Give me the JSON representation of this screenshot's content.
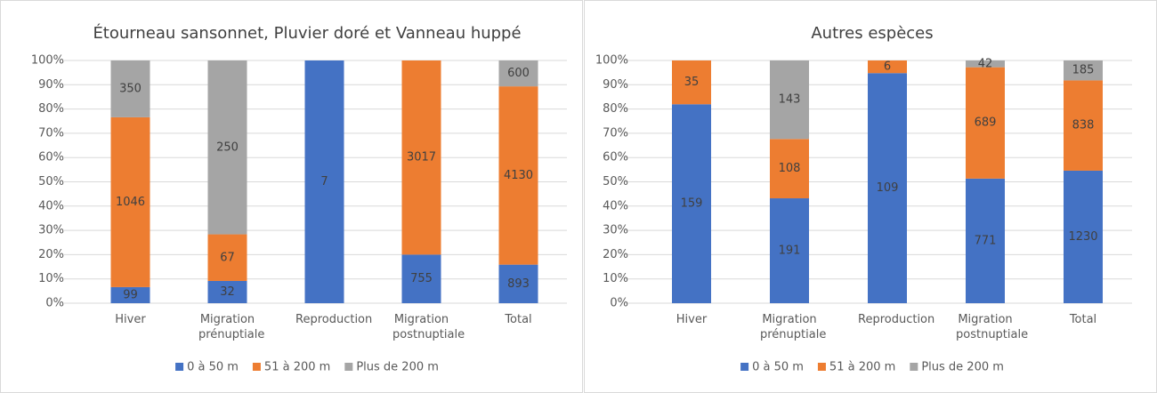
{
  "chart_data": [
    {
      "type": "bar",
      "stacking": "percent",
      "title": "Étourneau sansonnet, Pluvier doré et Vanneau huppé",
      "categories": [
        "Hiver",
        "Migration prénuptiale",
        "Reproduction",
        "Migration postnuptiale",
        "Total"
      ],
      "series": [
        {
          "name": "0 à 50 m",
          "color": "#4472c4",
          "values": [
            99,
            32,
            7,
            755,
            893
          ]
        },
        {
          "name": "51 à 200 m",
          "color": "#ed7d31",
          "values": [
            1046,
            67,
            null,
            3017,
            4130
          ]
        },
        {
          "name": "Plus de 200 m",
          "color": "#a5a5a5",
          "values": [
            350,
            250,
            null,
            null,
            600
          ]
        }
      ],
      "ylim": [
        0,
        100
      ],
      "yticks": [
        {
          "value": 0,
          "label": "0%"
        },
        {
          "value": 10,
          "label": "10%"
        },
        {
          "value": 20,
          "label": "20%"
        },
        {
          "value": 30,
          "label": "30%"
        },
        {
          "value": 40,
          "label": "40%"
        },
        {
          "value": 50,
          "label": "50%"
        },
        {
          "value": 60,
          "label": "60%"
        },
        {
          "value": 70,
          "label": "70%"
        },
        {
          "value": 80,
          "label": "80%"
        },
        {
          "value": 90,
          "label": "90%"
        },
        {
          "value": 100,
          "label": "100%"
        }
      ],
      "grid": true,
      "legend": "bottom"
    },
    {
      "type": "bar",
      "stacking": "percent",
      "title": "Autres espèces",
      "categories": [
        "Hiver",
        "Migration prénuptiale",
        "Reproduction",
        "Migration postnuptiale",
        "Total"
      ],
      "series": [
        {
          "name": "0 à 50 m",
          "color": "#4472c4",
          "values": [
            159,
            191,
            109,
            771,
            1230
          ]
        },
        {
          "name": "51 à 200 m",
          "color": "#ed7d31",
          "values": [
            35,
            108,
            6,
            689,
            838
          ]
        },
        {
          "name": "Plus de 200 m",
          "color": "#a5a5a5",
          "values": [
            null,
            143,
            null,
            42,
            185
          ]
        }
      ],
      "ylim": [
        0,
        100
      ],
      "yticks": [
        {
          "value": 0,
          "label": "0%"
        },
        {
          "value": 10,
          "label": "10%"
        },
        {
          "value": 20,
          "label": "20%"
        },
        {
          "value": 30,
          "label": "30%"
        },
        {
          "value": 40,
          "label": "40%"
        },
        {
          "value": 50,
          "label": "50%"
        },
        {
          "value": 60,
          "label": "60%"
        },
        {
          "value": 70,
          "label": "70%"
        },
        {
          "value": 80,
          "label": "80%"
        },
        {
          "value": 90,
          "label": "90%"
        },
        {
          "value": 100,
          "label": "100%"
        }
      ],
      "grid": true,
      "legend": "bottom"
    }
  ]
}
